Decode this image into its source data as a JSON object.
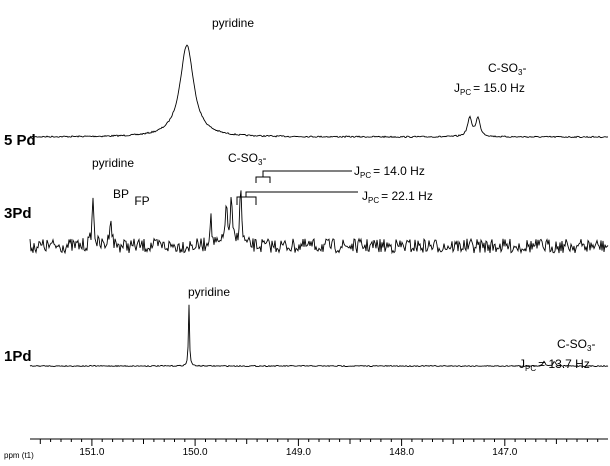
{
  "chart_data": {
    "type": "line",
    "xlabel": "ppm (t1)",
    "x_reversed": true,
    "xlim": [
      151.6,
      146.0
    ],
    "tick_labels": [
      "151.0",
      "150.0",
      "149.0",
      "148.0",
      "147.0"
    ],
    "tick_values": [
      151.0,
      150.0,
      149.0,
      148.0,
      147.0
    ],
    "series": [
      {
        "name": "5 Pd",
        "peaks": [
          {
            "ppm": 150.08,
            "height": 1.0,
            "width": 0.08
          },
          {
            "ppm": 147.34,
            "height": 0.2,
            "width": 0.025
          },
          {
            "ppm": 147.26,
            "height": 0.2,
            "width": 0.025
          }
        ],
        "annotations": [
          {
            "ppm": 150.08,
            "label": "pyridine"
          },
          {
            "ppm": 147.3,
            "label": "C-SO3-",
            "label_parts": [
              "C-SO",
              "3",
              "-"
            ],
            "j_parts": [
              "J",
              "PC",
              "= 15.0 Hz"
            ]
          }
        ]
      },
      {
        "name": "3Pd",
        "peaks": [
          {
            "ppm": 150.99,
            "height": 0.8,
            "width": 0.012
          },
          {
            "ppm": 150.82,
            "height": 0.55,
            "width": 0.012
          },
          {
            "ppm": 149.85,
            "height": 0.5,
            "width": 0.012
          },
          {
            "ppm": 149.7,
            "height": 0.75,
            "width": 0.012
          },
          {
            "ppm": 149.65,
            "height": 0.75,
            "width": 0.012
          },
          {
            "ppm": 149.56,
            "height": 1.0,
            "width": 0.012
          }
        ],
        "annotations": [
          {
            "ppm": 150.9,
            "label": "pyridine"
          },
          {
            "ppm": 150.99,
            "label": "BP"
          },
          {
            "ppm": 150.82,
            "label": "FP"
          },
          {
            "ppm": 149.7,
            "label": "C-SO3-",
            "label_parts": [
              "C-SO",
              "3",
              "-"
            ]
          },
          {
            "ppm": 149.6,
            "j_parts": [
              "J",
              "PC",
              "= 14.0 Hz"
            ]
          },
          {
            "ppm": 149.7,
            "j_parts": [
              "J",
              "PC",
              "= 22.1 Hz"
            ]
          }
        ]
      },
      {
        "name": "1Pd",
        "peaks": [
          {
            "ppm": 150.06,
            "height": 1.0,
            "width": 0.006
          },
          {
            "ppm": 146.62,
            "height": 0.08,
            "width": 0.012
          },
          {
            "ppm": 146.52,
            "height": 0.08,
            "width": 0.012
          }
        ],
        "annotations": [
          {
            "ppm": 150.06,
            "label": "pyridine"
          },
          {
            "ppm": 146.55,
            "label": "C-SO3-",
            "label_parts": [
              "C-SO",
              "3",
              "-"
            ],
            "j_parts": [
              "J",
              "PC",
              "= 13.7 Hz"
            ]
          }
        ]
      }
    ]
  }
}
